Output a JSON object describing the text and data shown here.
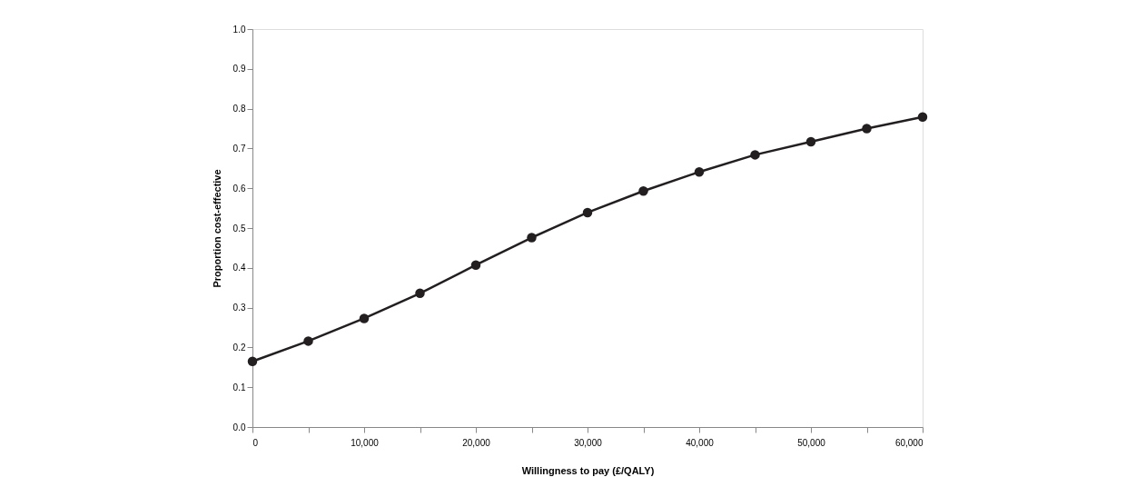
{
  "chart_data": {
    "type": "line",
    "xlabel": "Willingness to pay (£/QALY)",
    "ylabel": "Proportion cost-effective",
    "x": [
      0,
      5000,
      10000,
      15000,
      20000,
      25000,
      30000,
      35000,
      40000,
      45000,
      50000,
      55000,
      60000
    ],
    "series": [
      {
        "color": "#231f20",
        "values": [
          0.165,
          0.216,
          0.273,
          0.336,
          0.407,
          0.476,
          0.539,
          0.593,
          0.641,
          0.684,
          0.717,
          0.75,
          0.779
        ]
      }
    ],
    "xlim": [
      0,
      60000
    ],
    "xticks": [
      {
        "value": 0,
        "label": "0"
      },
      {
        "value": 5000,
        "label": null
      },
      {
        "value": 10000,
        "label": "10,000"
      },
      {
        "value": 15000,
        "label": null
      },
      {
        "value": 20000,
        "label": "20,000"
      },
      {
        "value": 25000,
        "label": null
      },
      {
        "value": 30000,
        "label": "30,000"
      },
      {
        "value": 35000,
        "label": null
      },
      {
        "value": 40000,
        "label": "40,000"
      },
      {
        "value": 45000,
        "label": null
      },
      {
        "value": 50000,
        "label": "50,000"
      },
      {
        "value": 55000,
        "label": null
      },
      {
        "value": 60000,
        "label": "60,000"
      }
    ],
    "ylim": [
      0,
      1
    ],
    "yticks": [
      {
        "value": 0,
        "label": "0.0"
      },
      {
        "value": 0.1,
        "label": "0.1"
      },
      {
        "value": 0.2,
        "label": "0.2"
      },
      {
        "value": 0.3,
        "label": "0.3"
      },
      {
        "value": 0.4,
        "label": "0.4"
      },
      {
        "value": 0.5,
        "label": "0.5"
      },
      {
        "value": 0.6,
        "label": "0.6"
      },
      {
        "value": 0.7,
        "label": "0.7"
      },
      {
        "value": 0.8,
        "label": "0.8"
      },
      {
        "value": 0.9,
        "label": "0.9"
      },
      {
        "value": 1,
        "label": "1.0"
      }
    ],
    "grid": false,
    "legend": false,
    "marker": "circle",
    "line_style": "solid"
  }
}
